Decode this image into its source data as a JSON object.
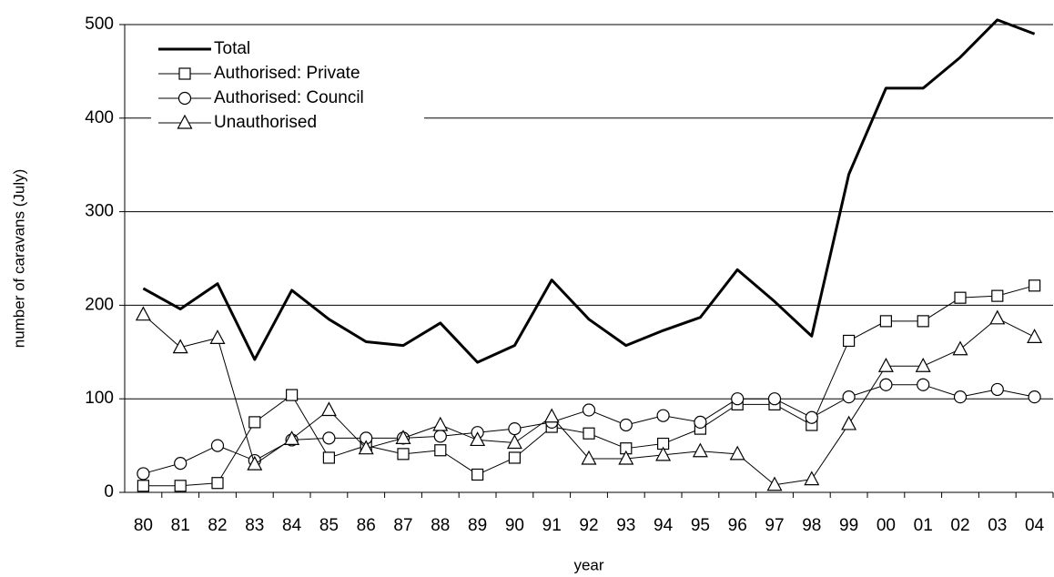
{
  "chart_data": {
    "type": "line",
    "y_label": "number of caravans (July)",
    "x_label": "year",
    "categories": [
      "80",
      "81",
      "82",
      "83",
      "84",
      "85",
      "86",
      "87",
      "88",
      "89",
      "90",
      "91",
      "92",
      "93",
      "94",
      "95",
      "96",
      "97",
      "98",
      "99",
      "00",
      "01",
      "02",
      "03",
      "04"
    ],
    "series": [
      {
        "name": "Total",
        "color": "#000000",
        "marker": "none",
        "width": 3,
        "values": [
          218,
          196,
          223,
          142,
          216,
          185,
          161,
          157,
          181,
          139,
          157,
          227,
          185,
          157,
          173,
          187,
          238,
          204,
          167,
          340,
          432,
          432,
          465,
          505,
          490
        ]
      },
      {
        "name": "Authorised: Private",
        "color": "#000000",
        "marker": "square",
        "width": 1,
        "values": [
          7,
          7,
          10,
          75,
          104,
          37,
          50,
          41,
          45,
          19,
          37,
          70,
          63,
          47,
          52,
          68,
          94,
          94,
          72,
          162,
          183,
          183,
          208,
          210,
          221
        ]
      },
      {
        "name": "Authorised: Council",
        "color": "#000000",
        "marker": "circle",
        "width": 1,
        "values": [
          20,
          31,
          50,
          34,
          56,
          58,
          58,
          58,
          60,
          64,
          68,
          75,
          88,
          72,
          82,
          75,
          100,
          100,
          80,
          102,
          115,
          115,
          102,
          110,
          102
        ]
      },
      {
        "name": "Unauthorised",
        "color": "#000000",
        "marker": "triangle",
        "width": 1,
        "values": [
          190,
          155,
          165,
          30,
          57,
          88,
          47,
          58,
          72,
          56,
          53,
          81,
          36,
          36,
          40,
          44,
          41,
          8,
          14,
          73,
          135,
          135,
          153,
          186,
          166
        ]
      }
    ],
    "ylim": [
      0,
      500
    ],
    "yticks": [
      0,
      100,
      200,
      300,
      400,
      500
    ],
    "grid": true,
    "legend": "top-left"
  }
}
